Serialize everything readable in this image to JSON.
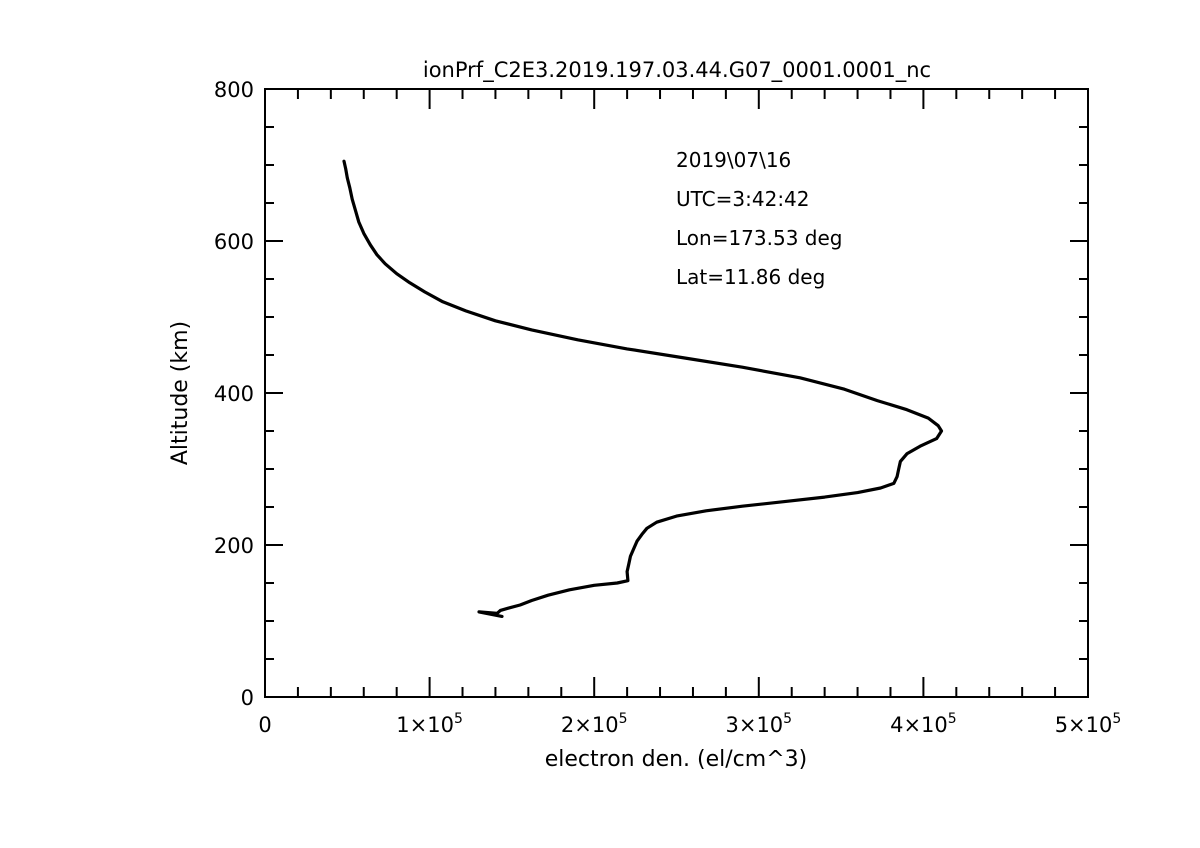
{
  "chart_data": {
    "type": "line",
    "title": "ionPrf_C2E3.2019.197.03.44.G07_0001.0001_nc",
    "xlabel": "electron den. (el/cm^3)",
    "ylabel": "Altitude (km)",
    "xlim": [
      0,
      500000
    ],
    "ylim": [
      0,
      800
    ],
    "x_ticks": [
      {
        "value": 0,
        "mant": "0",
        "exp": ""
      },
      {
        "value": 100000,
        "mant": "1×10",
        "exp": "5"
      },
      {
        "value": 200000,
        "mant": "2×10",
        "exp": "5"
      },
      {
        "value": 300000,
        "mant": "3×10",
        "exp": "5"
      },
      {
        "value": 400000,
        "mant": "4×10",
        "exp": "5"
      },
      {
        "value": 500000,
        "mant": "5×10",
        "exp": "5"
      }
    ],
    "x_minor_step": 20000,
    "y_ticks": [
      {
        "value": 0,
        "label": "0"
      },
      {
        "value": 200,
        "label": "200"
      },
      {
        "value": 400,
        "label": "400"
      },
      {
        "value": 600,
        "label": "600"
      },
      {
        "value": 800,
        "label": "800"
      }
    ],
    "y_minor_step": 50,
    "grid": false,
    "annotations": [
      "2019\\07\\16",
      "UTC=3:42:42",
      "Lon=173.53 deg",
      "Lat=11.86 deg"
    ],
    "series": [
      {
        "color": "#000000",
        "points": [
          [
            48000,
            705
          ],
          [
            49000,
            695
          ],
          [
            50000,
            683
          ],
          [
            51500,
            670
          ],
          [
            53000,
            655
          ],
          [
            55000,
            640
          ],
          [
            57000,
            625
          ],
          [
            60000,
            610
          ],
          [
            64000,
            595
          ],
          [
            68000,
            582
          ],
          [
            73000,
            570
          ],
          [
            80000,
            557
          ],
          [
            88000,
            545
          ],
          [
            97000,
            533
          ],
          [
            108000,
            520
          ],
          [
            122000,
            508
          ],
          [
            140000,
            495
          ],
          [
            162000,
            483
          ],
          [
            190000,
            470
          ],
          [
            220000,
            458
          ],
          [
            255000,
            446
          ],
          [
            290000,
            434
          ],
          [
            325000,
            420
          ],
          [
            352000,
            405
          ],
          [
            372000,
            390
          ],
          [
            390000,
            378
          ],
          [
            403000,
            367
          ],
          [
            409000,
            357
          ],
          [
            411000,
            350
          ],
          [
            408000,
            340
          ],
          [
            398000,
            330
          ],
          [
            390000,
            320
          ],
          [
            386000,
            310
          ],
          [
            385000,
            300
          ],
          [
            384000,
            290
          ],
          [
            382000,
            281
          ],
          [
            374000,
            275
          ],
          [
            360000,
            269
          ],
          [
            340000,
            263
          ],
          [
            315000,
            257
          ],
          [
            290000,
            251
          ],
          [
            268000,
            245
          ],
          [
            250000,
            238
          ],
          [
            238000,
            230
          ],
          [
            232000,
            222
          ],
          [
            229000,
            214
          ],
          [
            226000,
            205
          ],
          [
            224000,
            195
          ],
          [
            222000,
            185
          ],
          [
            221000,
            175
          ],
          [
            220000,
            165
          ],
          [
            220500,
            153
          ],
          [
            214000,
            150
          ],
          [
            200000,
            147
          ],
          [
            185000,
            141
          ],
          [
            172000,
            134
          ],
          [
            162000,
            127
          ],
          [
            155000,
            121
          ],
          [
            148000,
            117
          ],
          [
            143000,
            114
          ],
          [
            141000,
            110
          ],
          [
            130000,
            112
          ],
          [
            144000,
            106
          ]
        ]
      }
    ]
  }
}
